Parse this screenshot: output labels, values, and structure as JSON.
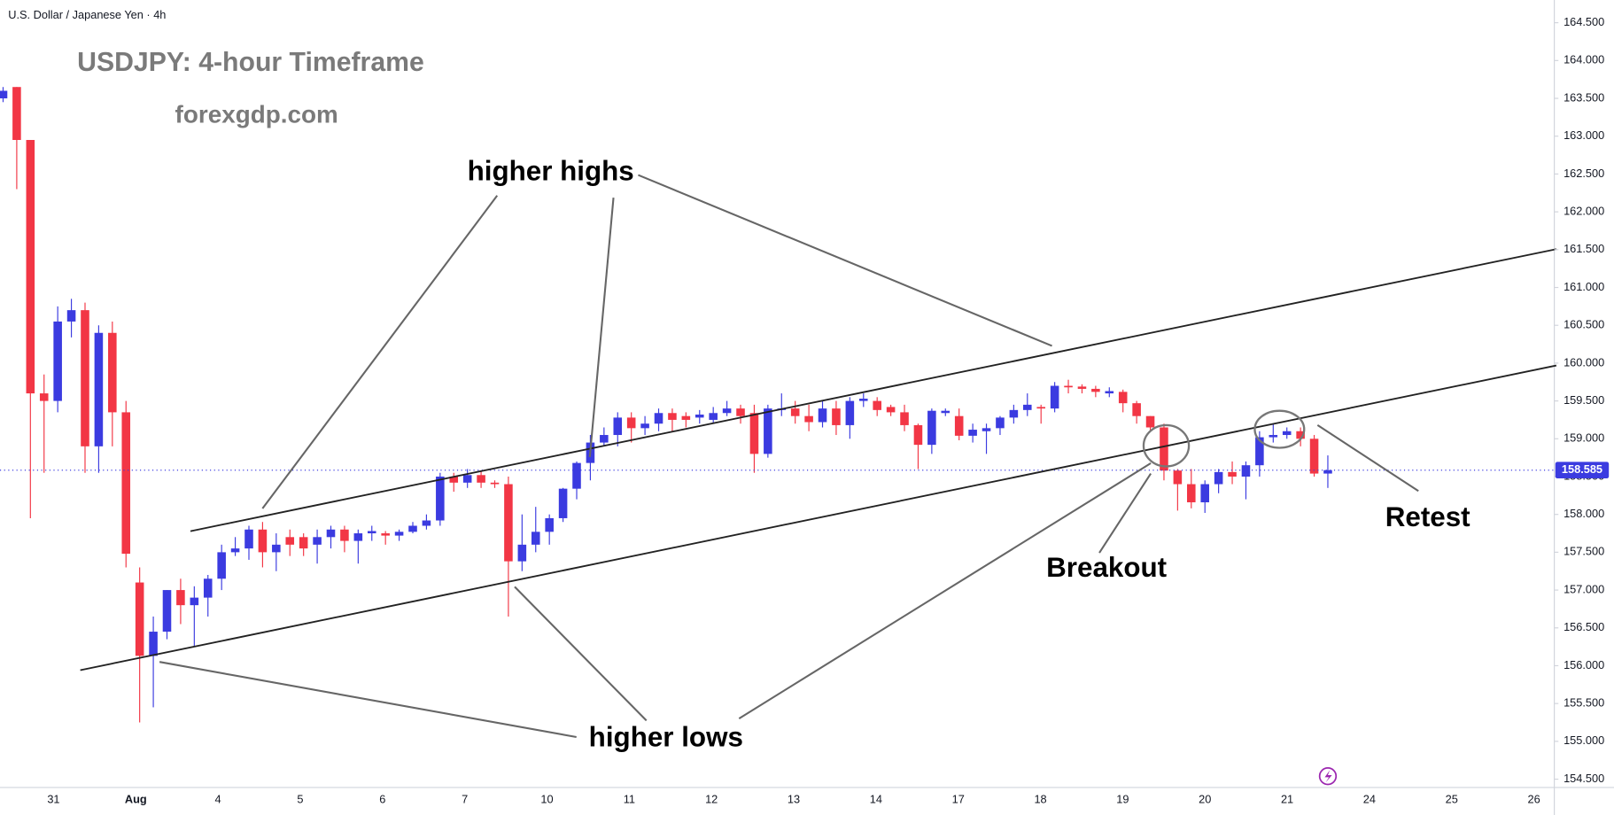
{
  "chart_data": {
    "type": "candlestick",
    "title": "U.S. Dollar / Japanese Yen · 4h",
    "annotations": [
      "USDJPY: 4-hour Timeframe",
      "forexgdp.com",
      "higher highs",
      "higher lows",
      "Breakout",
      "Retest"
    ],
    "x_labels": [
      "31",
      "Aug",
      "4",
      "5",
      "6",
      "7",
      "10",
      "11",
      "12",
      "13",
      "14",
      "17",
      "18",
      "19",
      "20",
      "21",
      "24",
      "25",
      "26"
    ],
    "up_color": "#3b3be0",
    "down_color": "#f23645",
    "last_price": 158.585,
    "ylim": [
      154.39,
      164.8
    ],
    "yticks": [
      {
        "value": 154.5,
        "label": "154.500"
      },
      {
        "value": 155,
        "label": "155.000"
      },
      {
        "value": 155.5,
        "label": "155.500"
      },
      {
        "value": 156,
        "label": "156.000"
      },
      {
        "value": 156.5,
        "label": "156.500"
      },
      {
        "value": 157,
        "label": "157.000"
      },
      {
        "value": 157.5,
        "label": "157.500"
      },
      {
        "value": 158,
        "label": "158.000"
      },
      {
        "value": 158.5,
        "label": "158.500"
      },
      {
        "value": 159,
        "label": "159.000"
      },
      {
        "value": 159.5,
        "label": "159.500"
      },
      {
        "value": 160,
        "label": "160.000"
      },
      {
        "value": 160.5,
        "label": "160.500"
      },
      {
        "value": 161,
        "label": "161.000"
      },
      {
        "value": 161.5,
        "label": "161.500"
      },
      {
        "value": 162,
        "label": "162.000"
      },
      {
        "value": 162.5,
        "label": "162.500"
      },
      {
        "value": 163,
        "label": "163.000"
      },
      {
        "value": 163.5,
        "label": "163.500"
      },
      {
        "value": 164,
        "label": "164.000"
      },
      {
        "value": 164.5,
        "label": "164.500"
      }
    ],
    "open": [
      163.5,
      163.65,
      162.95,
      159.6,
      159.5,
      160.55,
      160.7,
      158.9,
      160.4,
      159.35,
      157.1,
      156.13,
      156.45,
      157.0,
      156.8,
      156.9,
      157.15,
      157.5,
      157.55,
      157.8,
      157.5,
      157.7,
      157.7,
      157.6,
      157.7,
      157.8,
      157.65,
      157.75,
      157.75,
      157.72,
      157.77,
      157.85,
      157.92,
      158.5,
      158.42,
      158.52,
      158.42,
      158.4,
      157.38,
      157.6,
      157.77,
      157.95,
      158.34,
      158.68,
      158.95,
      159.05,
      159.28,
      159.14,
      159.2,
      159.34,
      159.3,
      159.28,
      159.25,
      159.34,
      159.4,
      159.34,
      158.8,
      159.38,
      159.4,
      159.3,
      159.22,
      159.4,
      159.18,
      159.5,
      159.5,
      159.42,
      159.35,
      159.18,
      158.92,
      159.34,
      159.3,
      159.04,
      159.1,
      159.14,
      159.28,
      159.38,
      159.42,
      159.4,
      159.7,
      159.69,
      159.66,
      159.6,
      159.62,
      159.47,
      159.3,
      159.15,
      158.58,
      158.4,
      158.16,
      158.4,
      158.56,
      158.5,
      158.65,
      159.02,
      159.05,
      159.1,
      159.0,
      158.54
    ],
    "high": [
      163.65,
      163.65,
      162.95,
      159.85,
      160.75,
      160.85,
      160.8,
      160.5,
      160.55,
      159.5,
      157.3,
      156.65,
      157.0,
      157.15,
      157.05,
      157.2,
      157.6,
      157.7,
      157.85,
      157.9,
      157.75,
      157.8,
      157.75,
      157.8,
      157.85,
      157.85,
      157.8,
      157.85,
      157.78,
      157.8,
      157.9,
      158.0,
      158.55,
      158.55,
      158.6,
      158.58,
      158.45,
      158.5,
      158.0,
      158.1,
      158.0,
      158.35,
      158.7,
      159.05,
      159.15,
      159.35,
      159.35,
      159.3,
      159.4,
      159.4,
      159.35,
      159.38,
      159.42,
      159.5,
      159.45,
      159.45,
      159.45,
      159.6,
      159.5,
      159.45,
      159.5,
      159.5,
      159.55,
      159.6,
      159.55,
      159.45,
      159.45,
      159.2,
      159.4,
      159.4,
      159.4,
      159.2,
      159.2,
      159.3,
      159.45,
      159.6,
      159.45,
      159.75,
      159.78,
      159.72,
      159.7,
      159.68,
      159.65,
      159.5,
      159.3,
      159.2,
      158.6,
      158.6,
      158.45,
      158.6,
      158.7,
      158.7,
      159.1,
      159.2,
      159.15,
      159.15,
      159.05,
      158.78
    ],
    "low": [
      163.45,
      162.3,
      157.95,
      158.55,
      159.35,
      160.34,
      158.55,
      158.55,
      158.9,
      157.3,
      155.25,
      155.45,
      156.35,
      156.55,
      156.25,
      156.65,
      157.0,
      157.45,
      157.4,
      157.3,
      157.25,
      157.45,
      157.45,
      157.35,
      157.55,
      157.5,
      157.35,
      157.65,
      157.6,
      157.65,
      157.75,
      157.8,
      157.85,
      158.3,
      158.35,
      158.35,
      158.35,
      156.65,
      157.25,
      157.5,
      157.6,
      157.9,
      158.2,
      158.45,
      158.9,
      158.9,
      158.95,
      159.05,
      159.1,
      159.1,
      159.15,
      159.2,
      159.2,
      159.3,
      159.2,
      158.55,
      158.75,
      159.3,
      159.2,
      159.1,
      159.15,
      159.05,
      159.0,
      159.42,
      159.3,
      159.3,
      159.1,
      158.6,
      158.8,
      159.3,
      158.98,
      158.95,
      158.8,
      159.05,
      159.2,
      159.3,
      159.2,
      159.35,
      159.6,
      159.6,
      159.55,
      159.55,
      159.35,
      159.2,
      159.1,
      158.45,
      158.05,
      158.08,
      158.02,
      158.28,
      158.4,
      158.2,
      158.5,
      158.95,
      159.0,
      158.9,
      158.5,
      158.35
    ],
    "close": [
      163.6,
      162.95,
      159.6,
      159.5,
      160.55,
      160.7,
      158.9,
      160.4,
      159.35,
      157.48,
      156.13,
      156.45,
      157.0,
      156.8,
      156.9,
      157.15,
      157.5,
      157.55,
      157.8,
      157.5,
      157.6,
      157.6,
      157.55,
      157.7,
      157.8,
      157.65,
      157.75,
      157.78,
      157.72,
      157.77,
      157.85,
      157.92,
      158.5,
      158.42,
      158.52,
      158.42,
      158.4,
      157.38,
      157.6,
      157.77,
      157.95,
      158.34,
      158.68,
      158.95,
      159.05,
      159.28,
      159.14,
      159.2,
      159.34,
      159.25,
      159.25,
      159.32,
      159.34,
      159.4,
      159.3,
      158.8,
      159.4,
      159.4,
      159.3,
      159.22,
      159.4,
      159.18,
      159.5,
      159.53,
      159.38,
      159.35,
      159.18,
      158.92,
      159.37,
      159.37,
      159.04,
      159.12,
      159.14,
      159.28,
      159.38,
      159.45,
      159.4,
      159.7,
      159.68,
      159.66,
      159.62,
      159.63,
      159.47,
      159.3,
      159.15,
      158.58,
      158.4,
      158.16,
      158.4,
      158.56,
      158.5,
      158.65,
      159.02,
      159.05,
      159.1,
      159.0,
      158.54,
      158.585
    ]
  }
}
